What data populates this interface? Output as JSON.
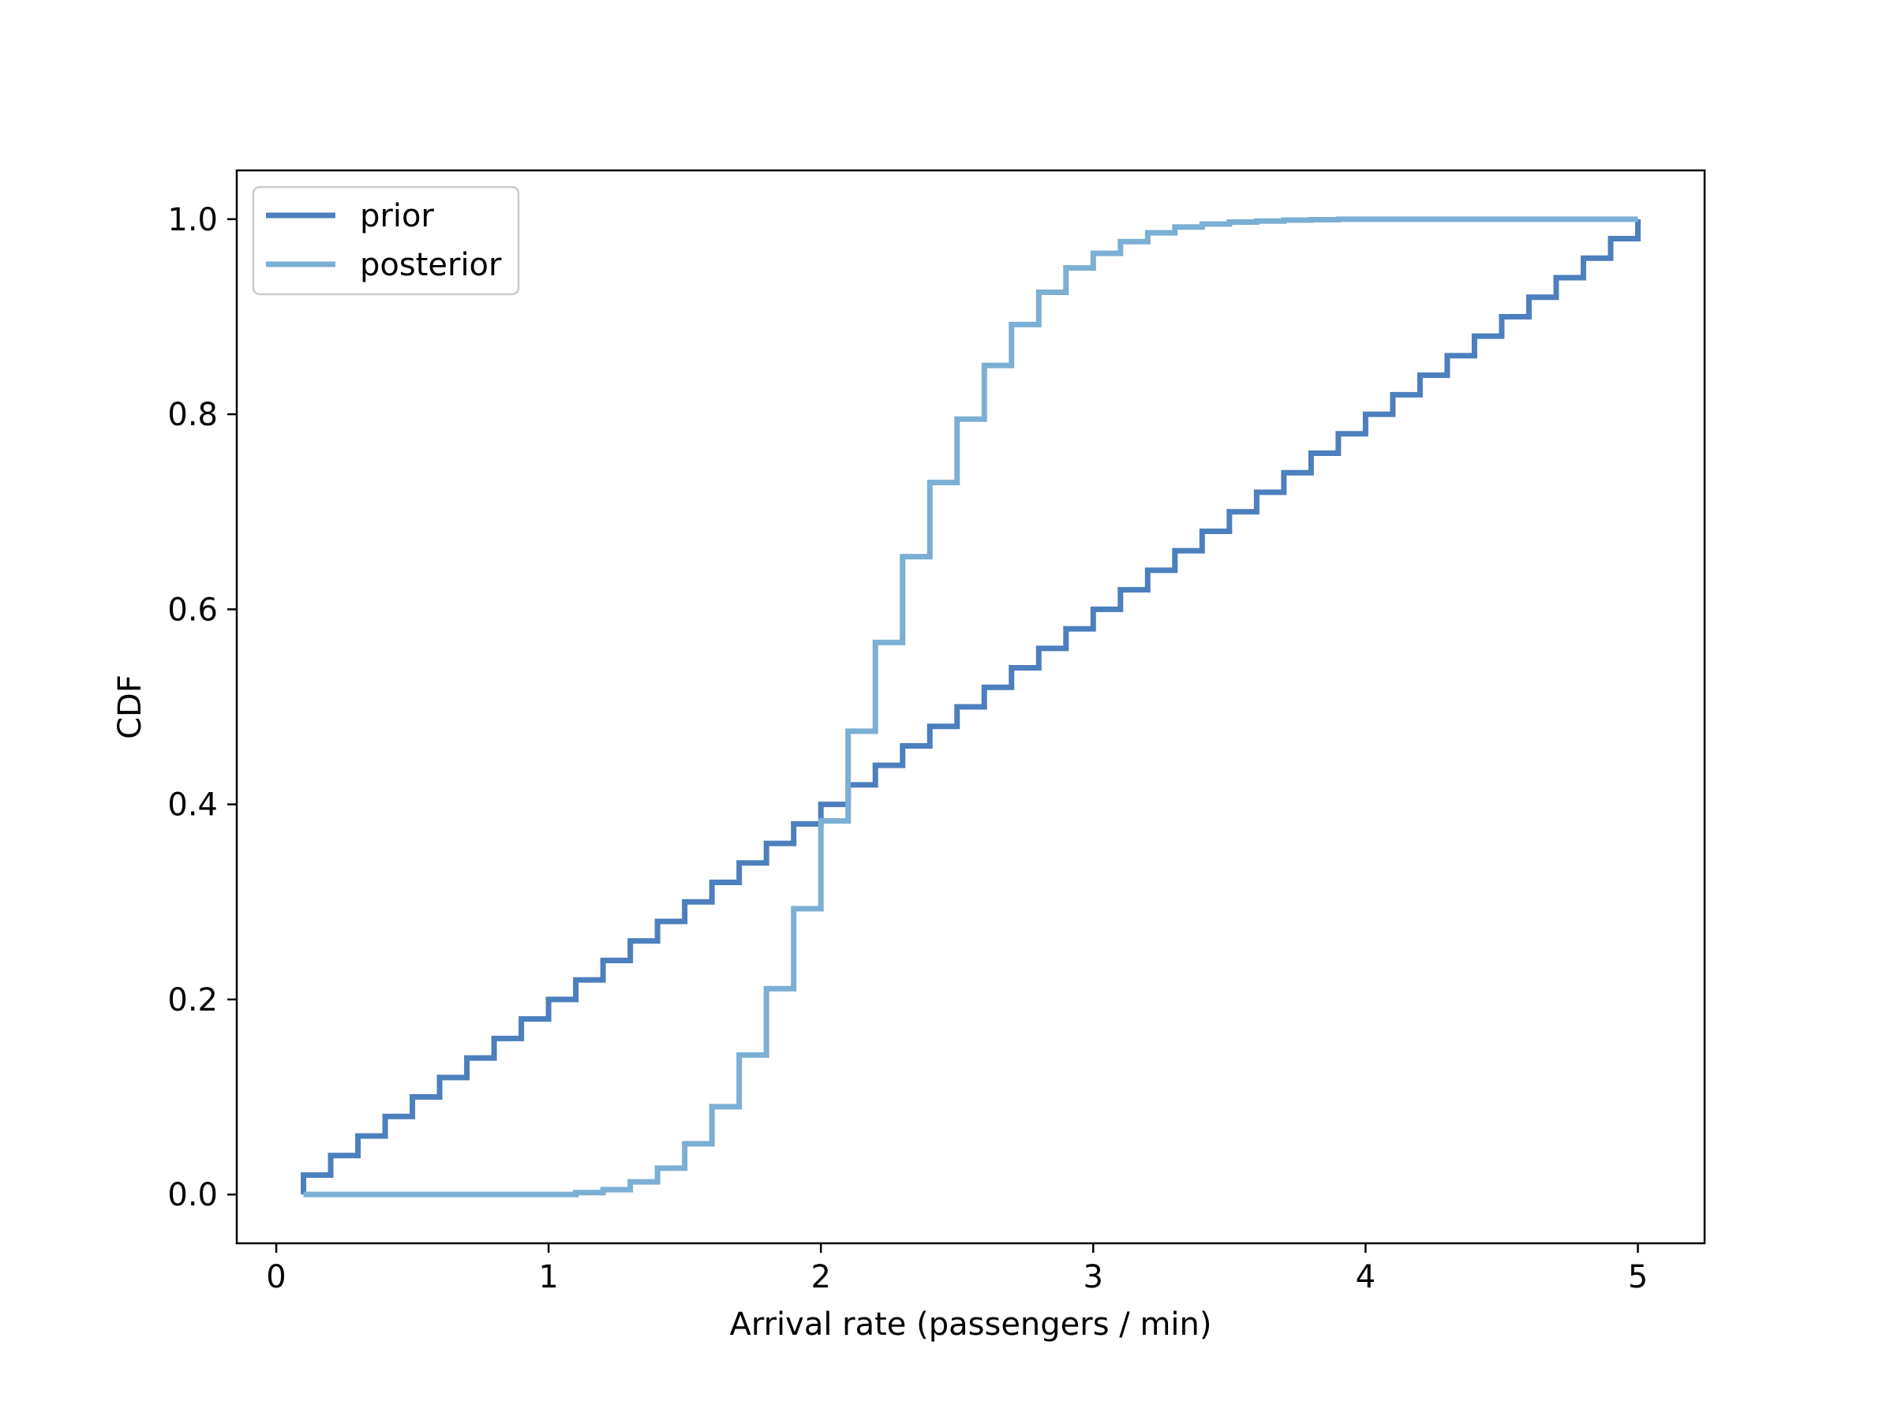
{
  "chart_data": {
    "type": "line",
    "step": "post",
    "title": "",
    "xlabel": "Arrival rate (passengers / min)",
    "ylabel": "CDF",
    "xlim": [
      -0.145,
      5.245
    ],
    "ylim": [
      -0.05,
      1.05
    ],
    "xticks": [
      "0",
      "1",
      "2",
      "3",
      "4",
      "5"
    ],
    "yticks": [
      "0.0",
      "0.2",
      "0.4",
      "0.6",
      "0.8",
      "1.0"
    ],
    "xtick_values": [
      0,
      1,
      2,
      3,
      4,
      5
    ],
    "ytick_values": [
      0,
      0.2,
      0.4,
      0.6,
      0.8,
      1.0
    ],
    "grid": false,
    "legend_position": "upper-left",
    "x": [
      0.1,
      0.2,
      0.3,
      0.4,
      0.5,
      0.6,
      0.7,
      0.8,
      0.9,
      1.0,
      1.1,
      1.2,
      1.3,
      1.4,
      1.5,
      1.6,
      1.7,
      1.8,
      1.9,
      2.0,
      2.1,
      2.2,
      2.3,
      2.4,
      2.5,
      2.6,
      2.7,
      2.8,
      2.9,
      3.0,
      3.1,
      3.2,
      3.3,
      3.4,
      3.5,
      3.6,
      3.7,
      3.8,
      3.9,
      4.0,
      4.1,
      4.2,
      4.3,
      4.4,
      4.5,
      4.6,
      4.7,
      4.8,
      4.9,
      5.0
    ],
    "series": [
      {
        "name": "prior",
        "color": "#4c7fbd",
        "values": [
          0.02,
          0.04,
          0.06,
          0.08,
          0.1,
          0.12,
          0.14,
          0.16,
          0.18,
          0.2,
          0.22,
          0.24,
          0.26,
          0.28,
          0.3,
          0.32,
          0.34,
          0.36,
          0.38,
          0.4,
          0.42,
          0.44,
          0.46,
          0.48,
          0.5,
          0.52,
          0.54,
          0.56,
          0.58,
          0.6,
          0.62,
          0.64,
          0.66,
          0.68,
          0.7,
          0.72,
          0.74,
          0.76,
          0.78,
          0.8,
          0.82,
          0.84,
          0.86,
          0.88,
          0.9,
          0.92,
          0.94,
          0.96,
          0.98,
          1.0
        ]
      },
      {
        "name": "posterior",
        "color": "#7bafd4",
        "values": [
          0.0,
          0.0,
          0.0,
          0.0,
          0.0,
          0.0,
          0.0,
          0.0,
          0.0,
          0.0,
          0.002,
          0.005,
          0.013,
          0.027,
          0.052,
          0.09,
          0.143,
          0.211,
          0.293,
          0.383,
          0.475,
          0.566,
          0.654,
          0.73,
          0.795,
          0.85,
          0.892,
          0.925,
          0.95,
          0.965,
          0.977,
          0.986,
          0.992,
          0.995,
          0.997,
          0.998,
          0.999,
          0.9995,
          1.0,
          1.0,
          1.0,
          1.0,
          1.0,
          1.0,
          1.0,
          1.0,
          1.0,
          1.0,
          1.0,
          1.0
        ]
      }
    ]
  }
}
